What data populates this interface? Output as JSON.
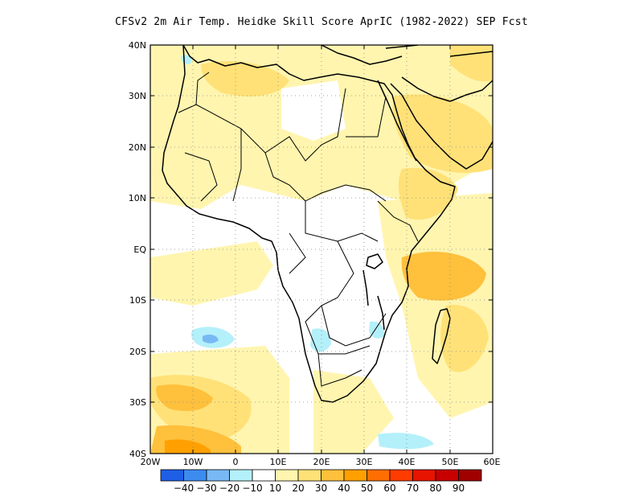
{
  "title": "CFSv2  2m Air Temp. Heidke Skill Score AprIC (1982-2022) SEP Fcst",
  "lat_labels": [
    "40N",
    "30N",
    "20N",
    "10N",
    "EQ",
    "10S",
    "20S",
    "30S",
    "40S"
  ],
  "lon_labels": [
    "20W",
    "10W",
    "0",
    "10E",
    "20E",
    "30E",
    "40E",
    "50E",
    "60E"
  ],
  "colorbar": {
    "labels": [
      "-40",
      "-30",
      "-20",
      "-10",
      "10",
      "20",
      "30",
      "40",
      "50",
      "60",
      "70",
      "80",
      "90"
    ],
    "colors": [
      "#1f5fe6",
      "#3c8cf0",
      "#78b9f5",
      "#b4f0fa",
      "#ffffff",
      "#fff5af",
      "#ffe178",
      "#ffc03c",
      "#ffa000",
      "#ff6e00",
      "#ff3c00",
      "#e61400",
      "#c80000",
      "#a00000"
    ]
  },
  "chart_data": {
    "type": "heatmap",
    "title": "CFSv2  2m Air Temp. Heidke Skill Score AprIC (1982-2022) SEP Fcst",
    "xlim": [
      -20,
      60
    ],
    "ylim": [
      -40,
      40
    ],
    "xticks": [
      "20W",
      "10W",
      "0",
      "10E",
      "20E",
      "30E",
      "40E",
      "50E",
      "60E"
    ],
    "yticks": [
      "40N",
      "30N",
      "20N",
      "10N",
      "EQ",
      "10S",
      "20S",
      "30S",
      "40S"
    ],
    "grid": true,
    "color_levels": [
      -40,
      -30,
      -20,
      -10,
      10,
      20,
      30,
      40,
      50,
      60,
      70,
      80,
      90
    ]
  }
}
